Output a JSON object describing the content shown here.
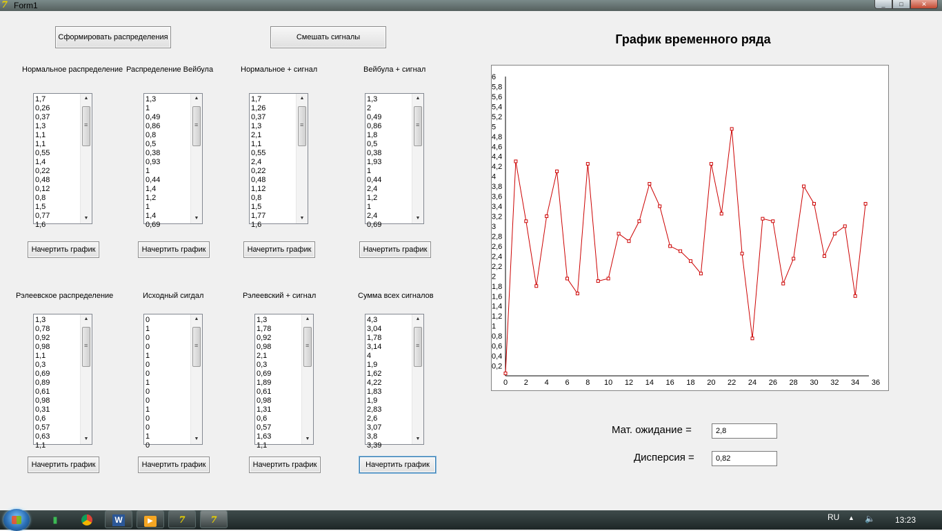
{
  "window": {
    "title": "Form1",
    "buttons": [
      "_",
      "□",
      "✕"
    ]
  },
  "top_buttons": {
    "generate": "Сформировать распределения",
    "mix": "Смешать сигналы"
  },
  "draw_label": "Начертить график",
  "lists": {
    "normal": {
      "label": "Нормальное распределение",
      "items": [
        "1,7",
        "0,26",
        "0,37",
        "1,3",
        "1,1",
        "1,1",
        "0,55",
        "1,4",
        "0,22",
        "0,48",
        "0,12",
        "0,8",
        "1,5",
        "0,77",
        "1,6"
      ]
    },
    "weibull": {
      "label": "Распределение Вейбула",
      "items": [
        "1,3",
        "1",
        "0,49",
        "0,86",
        "0,8",
        "0,5",
        "0,38",
        "0,93",
        "1",
        "0,44",
        "1,4",
        "1,2",
        "1",
        "1,4",
        "0,69"
      ]
    },
    "normal_signal": {
      "label": "Нормальное + сигнал",
      "items": [
        "1,7",
        "1,26",
        "0,37",
        "1,3",
        "2,1",
        "1,1",
        "0,55",
        "2,4",
        "0,22",
        "0,48",
        "1,12",
        "0,8",
        "1,5",
        "1,77",
        "1,6"
      ]
    },
    "weibull_signal": {
      "label": "Вейбула + сигнал",
      "items": [
        "1,3",
        "2",
        "0,49",
        "0,86",
        "1,8",
        "0,5",
        "0,38",
        "1,93",
        "1",
        "0,44",
        "2,4",
        "1,2",
        "1",
        "2,4",
        "0,69"
      ]
    },
    "rayleigh": {
      "label": "Рэлеевское распределение",
      "items": [
        "1,3",
        "0,78",
        "0,92",
        "0,98",
        "1,1",
        "0,3",
        "0,69",
        "0,89",
        "0,61",
        "0,98",
        "0,31",
        "0,6",
        "0,57",
        "0,63",
        "1,1"
      ]
    },
    "source": {
      "label": "Исходный сигдал",
      "items": [
        "0",
        "1",
        "0",
        "0",
        "1",
        "0",
        "0",
        "1",
        "0",
        "0",
        "1",
        "0",
        "0",
        "1",
        "0"
      ]
    },
    "rayleigh_signal": {
      "label": "Рэлеевский + сигнал",
      "items": [
        "1,3",
        "1,78",
        "0,92",
        "0,98",
        "2,1",
        "0,3",
        "0,69",
        "1,89",
        "0,61",
        "0,98",
        "1,31",
        "0,6",
        "0,57",
        "1,63",
        "1,1"
      ]
    },
    "sum": {
      "label": "Сумма всех сигналов",
      "items": [
        "4,3",
        "3,04",
        "1,78",
        "3,14",
        "4",
        "1,9",
        "1,62",
        "4,22",
        "1,83",
        "1,9",
        "2,83",
        "2,6",
        "3,07",
        "3,8",
        "3,39"
      ]
    }
  },
  "chart": {
    "title": "График временного ряда",
    "line_color": "#cc0000"
  },
  "chart_data": {
    "type": "line",
    "title": "График временного ряда",
    "x": [
      0,
      1,
      2,
      3,
      4,
      5,
      6,
      7,
      8,
      9,
      10,
      11,
      12,
      13,
      14,
      15,
      16,
      17,
      18,
      19,
      20,
      21,
      22,
      23,
      24,
      25,
      26,
      27,
      28,
      29,
      30,
      31,
      32,
      33,
      34,
      35
    ],
    "y": [
      0.05,
      4.3,
      3.1,
      1.8,
      3.2,
      4.1,
      1.95,
      1.65,
      4.25,
      1.9,
      1.95,
      2.85,
      2.7,
      3.1,
      3.85,
      3.4,
      2.6,
      2.5,
      2.3,
      2.05,
      4.25,
      3.25,
      4.95,
      2.45,
      0.75,
      3.15,
      3.1,
      1.85,
      2.35,
      3.8,
      3.45,
      2.4,
      2.85,
      3.0,
      1.6,
      3.45
    ],
    "xlim": [
      0,
      36
    ],
    "ylim": [
      0,
      6
    ],
    "x_ticks": [
      0,
      2,
      4,
      6,
      8,
      10,
      12,
      14,
      16,
      18,
      20,
      22,
      24,
      26,
      28,
      30,
      32,
      34,
      36
    ],
    "y_ticks": [
      "0,2",
      "0,4",
      "0,6",
      "0,8",
      "1",
      "1,2",
      "1,4",
      "1,6",
      "1,8",
      "2",
      "2,2",
      "2,4",
      "2,6",
      "2,8",
      "3",
      "3,2",
      "3,4",
      "3,6",
      "3,8",
      "4",
      "4,2",
      "4,4",
      "4,6",
      "4,8",
      "5",
      "5,2",
      "5,4",
      "5,6",
      "5,8",
      "6"
    ],
    "legend": "none",
    "grid": false
  },
  "stats": {
    "mean_label": "Мат. ожидание =",
    "mean_value": "2,8",
    "variance_label": "Дисперсия =",
    "variance_value": "0,82"
  },
  "taskbar": {
    "lang": "RU",
    "time": "13:23",
    "apps": [
      "excel-icon",
      "chrome-icon",
      "word-icon",
      "media-player-icon",
      "delphi-icon",
      "delphi-form-icon"
    ]
  }
}
